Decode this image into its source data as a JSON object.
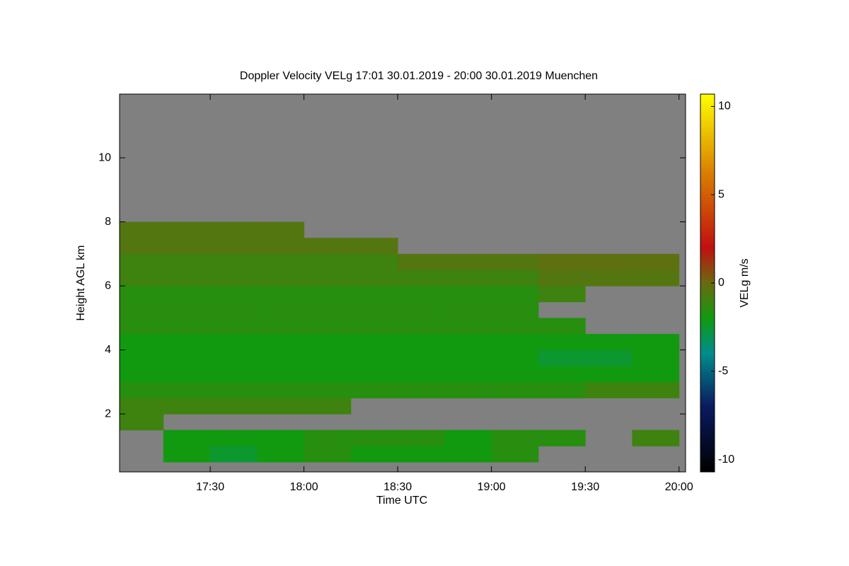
{
  "chart_data": {
    "type": "heatmap",
    "title": "Doppler Velocity VELg   17:01 30.01.2019 - 20:00 30.01.2019 Muenchen",
    "x_label": "Time UTC",
    "y_label": "Height AGL km",
    "colorbar_label": "VELg m/s",
    "no_signal_color": "#808080",
    "x_bins": [
      17,
      17.25,
      17.5,
      17.75,
      18,
      18.25,
      18.5,
      18.75,
      19,
      19.25,
      19.5,
      19.75,
      20
    ],
    "y_bins": [
      0.5,
      1,
      1.5,
      2,
      2.5,
      3,
      3.5,
      4,
      4.5,
      5,
      5.5,
      6,
      6.5,
      7,
      7.5,
      8
    ],
    "values": [
      [
        null,
        -2,
        -2.5,
        -2,
        -1.5,
        -2,
        -2,
        -2,
        -1.5,
        null,
        null,
        null
      ],
      [
        null,
        -2,
        -2,
        -2,
        -1.5,
        -1.5,
        -1.5,
        -2,
        -1.5,
        -1.5,
        null,
        -1
      ],
      [
        -1,
        null,
        null,
        null,
        null,
        null,
        null,
        null,
        null,
        null,
        null,
        null
      ],
      [
        -1,
        -1,
        -1,
        -1,
        -1,
        null,
        null,
        null,
        null,
        null,
        null,
        null
      ],
      [
        -1.5,
        -1.5,
        -1.5,
        -1.5,
        -1.5,
        -1.5,
        -1.5,
        -1.5,
        -1.5,
        -1.5,
        -1,
        -1
      ],
      [
        -2,
        -2,
        -2,
        -2,
        -2,
        -2,
        -2,
        -2,
        -2,
        -2,
        -2,
        -2
      ],
      [
        -2,
        -2,
        -2,
        -2,
        -2,
        -2,
        -2,
        -2,
        -2,
        -2.5,
        -2.5,
        -2
      ],
      [
        -2,
        -2,
        -2,
        -2,
        -2,
        -2,
        -2,
        -2,
        -2,
        -2,
        -2,
        -2
      ],
      [
        -1.5,
        -1.5,
        -1.5,
        -1.5,
        -1.5,
        -1.5,
        -1.5,
        -1.5,
        -1.5,
        -1.5,
        null,
        null
      ],
      [
        -1.5,
        -1.5,
        -1.5,
        -1.5,
        -1.5,
        -1.5,
        -1.5,
        -1.5,
        -1.5,
        null,
        null,
        null
      ],
      [
        -1.5,
        -1.5,
        -1.5,
        -1.5,
        -1.5,
        -1.5,
        -1.5,
        -1.5,
        -1.5,
        -1,
        null,
        null
      ],
      [
        -1,
        -1,
        -1,
        -1,
        -1,
        -1,
        -1,
        -1,
        -1,
        -0.5,
        -0.5,
        -0.5
      ],
      [
        -1,
        -1,
        -1,
        -1,
        -1,
        -1,
        -0.5,
        -0.5,
        -0.5,
        -0.3,
        -0.3,
        -0.3
      ],
      [
        -0.5,
        -0.5,
        -0.5,
        -0.5,
        -0.5,
        -0.5,
        null,
        null,
        null,
        null,
        null,
        null
      ],
      [
        -0.5,
        -0.5,
        -0.5,
        -0.5,
        null,
        null,
        null,
        null,
        null,
        null,
        null,
        null
      ]
    ],
    "xlim": [
      17.0167,
      20.035
    ],
    "xticks": [
      {
        "value": 17.5,
        "label": "17:30"
      },
      {
        "value": 18,
        "label": "18:00"
      },
      {
        "value": 18.5,
        "label": "18:30"
      },
      {
        "value": 19,
        "label": "19:00"
      },
      {
        "value": 19.5,
        "label": "19:30"
      },
      {
        "value": 20,
        "label": "20:00"
      }
    ],
    "ylim": [
      0.19,
      11.99
    ],
    "yticks": [
      2,
      4,
      6,
      8,
      10
    ],
    "zlim": [
      -10.7,
      10.7
    ],
    "zticks": [
      -10,
      -5,
      0,
      5,
      10
    ],
    "colormap": [
      {
        "value": -10.7,
        "color": "#000000"
      },
      {
        "value": -7,
        "color": "#0a1a60"
      },
      {
        "value": -4,
        "color": "#008c8c"
      },
      {
        "value": -2,
        "color": "#119a10"
      },
      {
        "value": 0,
        "color": "#6a6a10"
      },
      {
        "value": 2,
        "color": "#c01010"
      },
      {
        "value": 6,
        "color": "#d87800"
      },
      {
        "value": 10.7,
        "color": "#ffff00"
      }
    ]
  }
}
